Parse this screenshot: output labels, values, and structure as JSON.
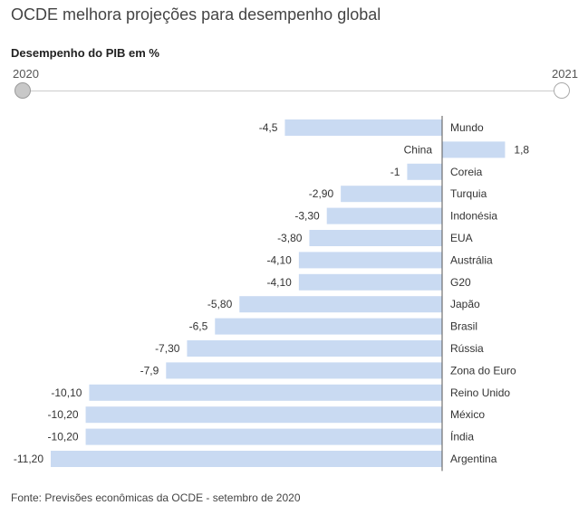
{
  "header": {
    "title": "OCDE melhora projeções para desempenho global",
    "subtitle": "Desempenho do PIB em %"
  },
  "year_slider": {
    "start_label": "2020",
    "end_label": "2021",
    "selected": "2020"
  },
  "chart_data": {
    "type": "bar",
    "orientation": "horizontal",
    "categories": [
      "Mundo",
      "China",
      "Coreia",
      "Turquia",
      "Indonésia",
      "EUA",
      "Austrália",
      "G20",
      "Japão",
      "Brasil",
      "Rússia",
      "Zona do Euro",
      "Reino Unido",
      "México",
      "Índia",
      "Argentina"
    ],
    "values": [
      -4.5,
      1.8,
      -1,
      -2.9,
      -3.3,
      -3.8,
      -4.1,
      -4.1,
      -5.8,
      -6.5,
      -7.3,
      -7.9,
      -10.1,
      -10.2,
      -10.2,
      -11.2
    ],
    "value_labels": [
      "-4,5",
      "1,8",
      "-1",
      "-2,90",
      "-3,30",
      "-3,80",
      "-4,10",
      "-4,10",
      "-5,80",
      "-6,5",
      "-7,30",
      "-7,9",
      "-10,10",
      "-10,20",
      "-10,20",
      "-11,20"
    ],
    "title": "Desempenho do PIB em %",
    "xlabel": "",
    "ylabel": "",
    "xlim": [
      -11.2,
      1.8
    ],
    "grid": false,
    "bar_color": "#c9daf2",
    "axis_color": "#555555"
  },
  "footer": {
    "source": "Fonte: Previsões econômicas da OCDE - setembro de 2020"
  }
}
